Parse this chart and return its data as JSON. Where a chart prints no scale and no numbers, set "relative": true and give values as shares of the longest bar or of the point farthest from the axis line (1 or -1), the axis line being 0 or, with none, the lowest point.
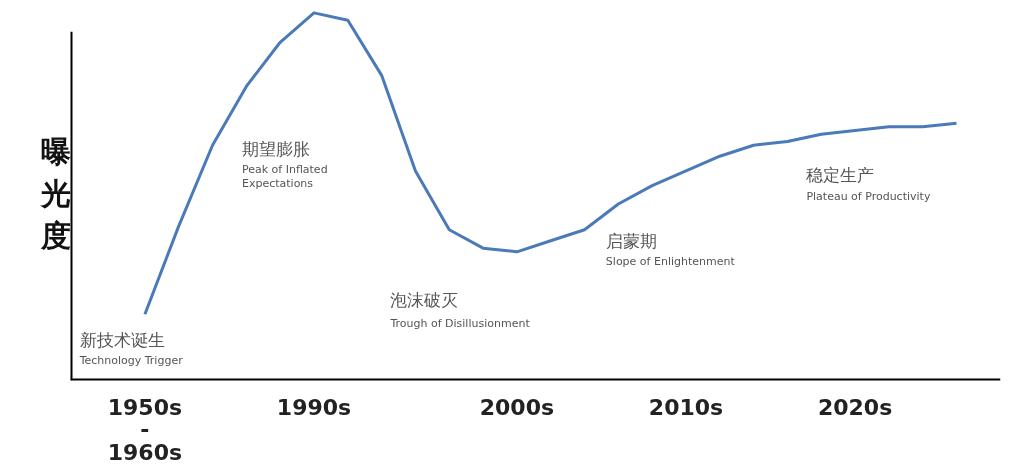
{
  "chart_data": {
    "type": "line",
    "relative": true,
    "ylabel": "曝光度",
    "categories": [
      "1950s\n-\n1960s",
      null,
      null,
      null,
      null,
      "1990s",
      null,
      null,
      null,
      null,
      null,
      "2000s",
      null,
      null,
      null,
      null,
      "2010s",
      null,
      null,
      null,
      null,
      "2020s",
      null,
      null,
      null
    ],
    "series": [
      {
        "color": "#4a7ab8",
        "values": [
          0.18,
          0.42,
          0.64,
          0.8,
          0.92,
          1.0,
          0.98,
          0.83,
          0.57,
          0.41,
          0.36,
          0.35,
          0.38,
          0.41,
          0.48,
          0.53,
          0.57,
          0.61,
          0.64,
          0.65,
          0.67,
          0.68,
          0.69,
          0.69,
          0.7
        ]
      }
    ],
    "grid": false,
    "marker": "none",
    "line_style": "solid",
    "annotations": [
      "新技术诞生",
      "Technology Trigger",
      "期望膨胀",
      "Peak of Inflated",
      "Expectations",
      "泡沫破灭",
      "Trough of Disillusionment",
      "启蒙期",
      "Slope of Enlightenment",
      "稳定生产",
      "Plateau of Productivity"
    ]
  }
}
